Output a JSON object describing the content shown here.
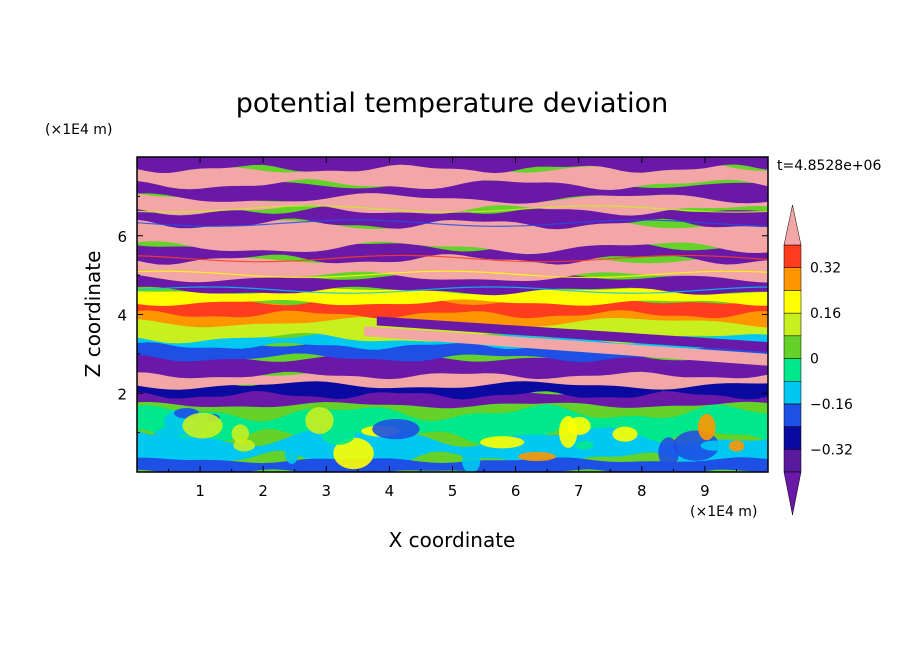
{
  "chart_data": {
    "type": "heatmap",
    "title": "potential temperature deviation",
    "xlabel": "X coordinate",
    "ylabel": "Z coordinate",
    "x_unit": "(×1E4 m)",
    "y_unit": "(×1E4 m)",
    "time_label": "t=4.8528e+06",
    "xlim": [
      0,
      10
    ],
    "ylim": [
      0,
      8
    ],
    "x_ticks": [
      "1",
      "2",
      "3",
      "4",
      "5",
      "6",
      "7",
      "8",
      "9"
    ],
    "y_ticks": [
      "2",
      "4",
      "6"
    ],
    "colorbar": {
      "tick_labels": [
        "0.32",
        "0.16",
        "0",
        "−0.16",
        "−0.32"
      ],
      "tick_values": [
        0.32,
        0.16,
        0,
        -0.16,
        -0.32
      ],
      "levels": [
        -0.4,
        -0.32,
        -0.24,
        -0.16,
        -0.08,
        0,
        0.08,
        0.16,
        0.24,
        0.32,
        0.4
      ],
      "colors_low_to_high": [
        "#5a1a9e",
        "#0a0aa0",
        "#1e50e6",
        "#00c8f0",
        "#00e88c",
        "#64d228",
        "#c8f01e",
        "#ffff00",
        "#ff9600",
        "#ff3c1e",
        "#e61e1e",
        "#f2a6a6"
      ],
      "under_color": "#6a18a8",
      "over_color": "#f2a6a6",
      "extend": "both"
    },
    "field_layers": [
      {
        "z_range": [
          0,
          1.7
        ],
        "dominant": "green/cyan/yellow turbulent eddies",
        "value_range": [
          -0.16,
          0.24
        ]
      },
      {
        "z_range": [
          1.7,
          2.9
        ],
        "dominant": "alternating purple and pink bands",
        "value_range": [
          -0.4,
          0.4
        ]
      },
      {
        "z_range": [
          2.9,
          4.6
        ],
        "dominant": "yellow/orange/red warm layer over blue/cyan",
        "value_range": [
          -0.32,
          0.32
        ]
      },
      {
        "z_range": [
          4.6,
          8.0
        ],
        "dominant": "alternating pink (above range) and purple (below range) strata",
        "value_range": [
          -0.4,
          0.4
        ]
      }
    ],
    "grid": false,
    "legend": "colorbar-right"
  }
}
